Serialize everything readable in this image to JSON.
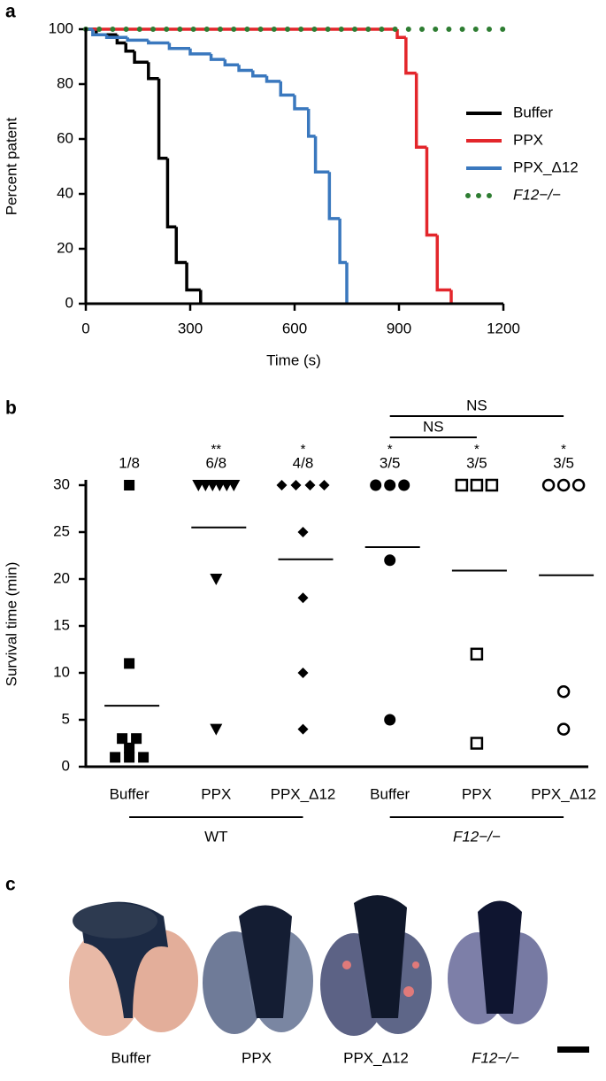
{
  "chart_data": [
    {
      "type": "line",
      "panel_label": "a",
      "step": true,
      "xlabel": "Time (s)",
      "ylabel": "Percent patent",
      "xlim": [
        0,
        1200
      ],
      "xticks": [
        0,
        300,
        600,
        900,
        1200
      ],
      "ylim": [
        0,
        100
      ],
      "yticks": [
        0,
        20,
        40,
        60,
        80,
        100
      ],
      "legend": "center right",
      "series": [
        {
          "name": "Buffer",
          "color": "#000000",
          "style": "solid",
          "x": [
            0,
            30,
            90,
            115,
            140,
            180,
            210,
            235,
            260,
            290,
            330
          ],
          "values": [
            100,
            98,
            95,
            92,
            88,
            82,
            53,
            28,
            15,
            5,
            0
          ]
        },
        {
          "name": "PPX",
          "color": "#e3262b",
          "style": "solid",
          "x": [
            0,
            895,
            920,
            950,
            980,
            1010,
            1050
          ],
          "values": [
            100,
            97,
            84,
            57,
            25,
            5,
            0
          ]
        },
        {
          "name": "PPX_Δ12",
          "color": "#3a78be",
          "style": "solid",
          "x": [
            0,
            20,
            60,
            120,
            180,
            240,
            300,
            360,
            400,
            440,
            480,
            520,
            560,
            600,
            640,
            660,
            700,
            730,
            750
          ],
          "values": [
            100,
            98,
            97,
            96,
            95,
            93,
            91,
            89,
            87,
            85,
            83,
            81,
            76,
            71,
            61,
            48,
            31,
            15,
            0
          ]
        },
        {
          "name": "F12−/−",
          "color": "#2e7d32",
          "style": "dotted",
          "x": [
            0,
            1200
          ],
          "values": [
            100,
            100
          ]
        }
      ]
    },
    {
      "type": "scatter",
      "panel_label": "b",
      "ylabel": "Survival time (min)",
      "ylim": [
        0,
        30
      ],
      "yticks": [
        0,
        5,
        10,
        15,
        20,
        25,
        30
      ],
      "categories": [
        "Buffer",
        "PPX",
        "PPX_Δ12",
        "Buffer",
        "PPX",
        "PPX_Δ12"
      ],
      "markers": [
        "square",
        "triangle-down",
        "diamond",
        "circle",
        "open-square",
        "open-circle"
      ],
      "points": [
        [
          30,
          11,
          3,
          3,
          2,
          1,
          1,
          1
        ],
        [
          30,
          30,
          30,
          30,
          30,
          30,
          20,
          4
        ],
        [
          30,
          30,
          30,
          30,
          25,
          18,
          10,
          4
        ],
        [
          30,
          30,
          30,
          22,
          5
        ],
        [
          30,
          30,
          30,
          12,
          2.5
        ],
        [
          30,
          30,
          30,
          8,
          4
        ]
      ],
      "means": [
        6.5,
        25.5,
        22.1,
        23.4,
        20.9,
        20.4
      ],
      "fractions": [
        "1/8",
        "6/8",
        "4/8",
        "3/5",
        "3/5",
        "3/5"
      ],
      "significance": [
        null,
        "**",
        "*",
        "*",
        "*",
        "*"
      ],
      "groups": [
        {
          "label": "WT",
          "from": 0,
          "to": 2
        },
        {
          "label": "F12−/−",
          "from": 3,
          "to": 5
        }
      ],
      "comparisons": [
        {
          "label": "NS",
          "from": 3,
          "to": 5
        },
        {
          "label": "NS",
          "from": 3,
          "to": 4
        }
      ]
    }
  ],
  "panel_c": {
    "panel_label": "c",
    "labels": [
      "Buffer",
      "PPX",
      "PPX_Δ12",
      "F12−/−"
    ]
  }
}
